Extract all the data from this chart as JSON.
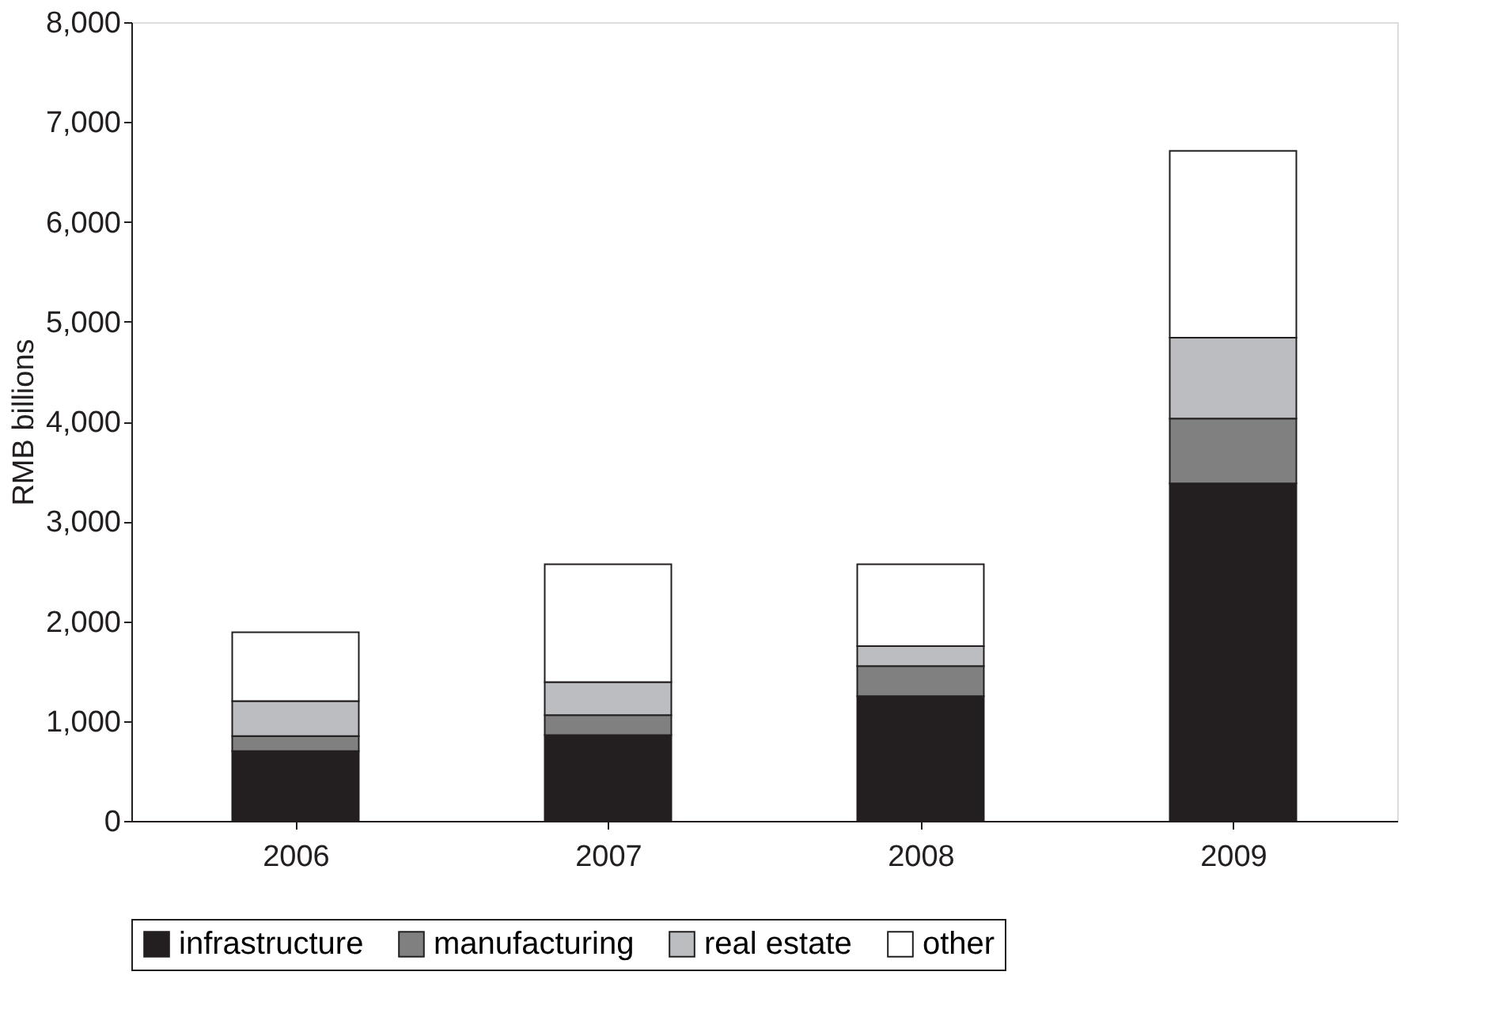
{
  "chart_data": {
    "type": "bar",
    "stacked": true,
    "ylabel": "RMB billions",
    "categories": [
      "2006",
      "2007",
      "2008",
      "2009"
    ],
    "series": [
      {
        "name": "infrastructure",
        "color": "#231f20",
        "values": [
          700,
          860,
          1250,
          3380
        ]
      },
      {
        "name": "manufacturing",
        "color": "#808080",
        "values": [
          150,
          200,
          300,
          650
        ]
      },
      {
        "name": "real estate",
        "color": "#bcbdc0",
        "values": [
          350,
          330,
          200,
          810
        ]
      },
      {
        "name": "other",
        "color": "#ffffff",
        "values": [
          690,
          1180,
          820,
          1870
        ]
      }
    ],
    "ylim": [
      0,
      8000
    ],
    "yticks": [
      0,
      {
        "value": 1000,
        "label": "1,000"
      },
      {
        "value": 2000,
        "label": "2,000"
      },
      {
        "value": 3000,
        "label": "3,000"
      },
      {
        "value": 4000,
        "label": "4,000"
      },
      {
        "value": 5000,
        "label": "5,000"
      },
      {
        "value": 6000,
        "label": "6,000"
      },
      {
        "value": 7000,
        "label": "7,000"
      },
      {
        "value": 8000,
        "label": "8,000"
      }
    ],
    "grid": false,
    "legend": "bottom"
  }
}
